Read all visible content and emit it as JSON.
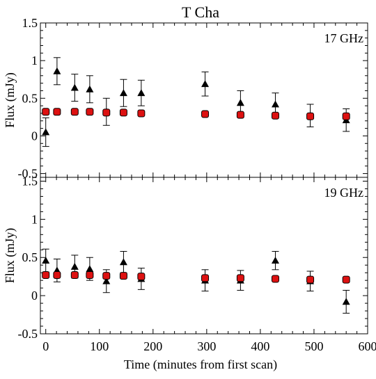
{
  "chart_data": {
    "type": "scatter",
    "title": "T Cha",
    "xlabel": "Time (minutes from first scan)",
    "xlim": [
      -10,
      600
    ],
    "xticks": [
      0,
      100,
      200,
      300,
      400,
      500,
      600
    ],
    "shared_x_axis": true,
    "panels": [
      {
        "label": "17 GHz",
        "ylabel": "Flux (mJy)",
        "ylim": [
          -0.55,
          1.5
        ],
        "yticks": [
          -0.5,
          0,
          0.5,
          1,
          1.5
        ],
        "series": [
          {
            "marker": "triangle",
            "color": "#000000",
            "x": [
              0,
              21,
              54,
              82,
              113,
              145,
              178,
              297,
              363,
              428,
              493,
              560
            ],
            "y": [
              0.05,
              0.86,
              0.64,
              0.62,
              0.32,
              0.57,
              0.57,
              0.69,
              0.44,
              0.42,
              0.27,
              0.21
            ],
            "yerr": [
              0.19,
              0.18,
              0.18,
              0.18,
              0.18,
              0.18,
              0.17,
              0.16,
              0.16,
              0.15,
              0.15,
              0.15
            ]
          },
          {
            "marker": "square",
            "color": "#dd1111",
            "x": [
              0,
              21,
              54,
              82,
              113,
              145,
              178,
              297,
              363,
              428,
              493,
              560
            ],
            "y": [
              0.32,
              0.32,
              0.32,
              0.32,
              0.31,
              0.31,
              0.3,
              0.29,
              0.28,
              0.27,
              0.26,
              0.26
            ]
          }
        ]
      },
      {
        "label": "19 GHz",
        "ylabel": "Flux (mJy)",
        "ylim": [
          -0.5,
          1.55
        ],
        "yticks": [
          -0.5,
          0,
          0.5,
          1,
          1.5
        ],
        "series": [
          {
            "marker": "triangle",
            "color": "#000000",
            "x": [
              0,
              21,
              54,
              82,
              113,
              145,
              178,
              297,
              363,
              428,
              493,
              560
            ],
            "y": [
              0.46,
              0.33,
              0.38,
              0.35,
              0.19,
              0.44,
              0.22,
              0.2,
              0.2,
              0.46,
              0.19,
              -0.08
            ],
            "yerr": [
              0.15,
              0.15,
              0.15,
              0.15,
              0.15,
              0.14,
              0.14,
              0.14,
              0.13,
              0.12,
              0.13,
              0.15
            ]
          },
          {
            "marker": "square",
            "color": "#dd1111",
            "x": [
              0,
              21,
              54,
              82,
              113,
              145,
              178,
              297,
              363,
              428,
              493,
              560
            ],
            "y": [
              0.27,
              0.27,
              0.27,
              0.27,
              0.26,
              0.26,
              0.25,
              0.23,
              0.23,
              0.22,
              0.21,
              0.21
            ]
          }
        ]
      }
    ]
  }
}
